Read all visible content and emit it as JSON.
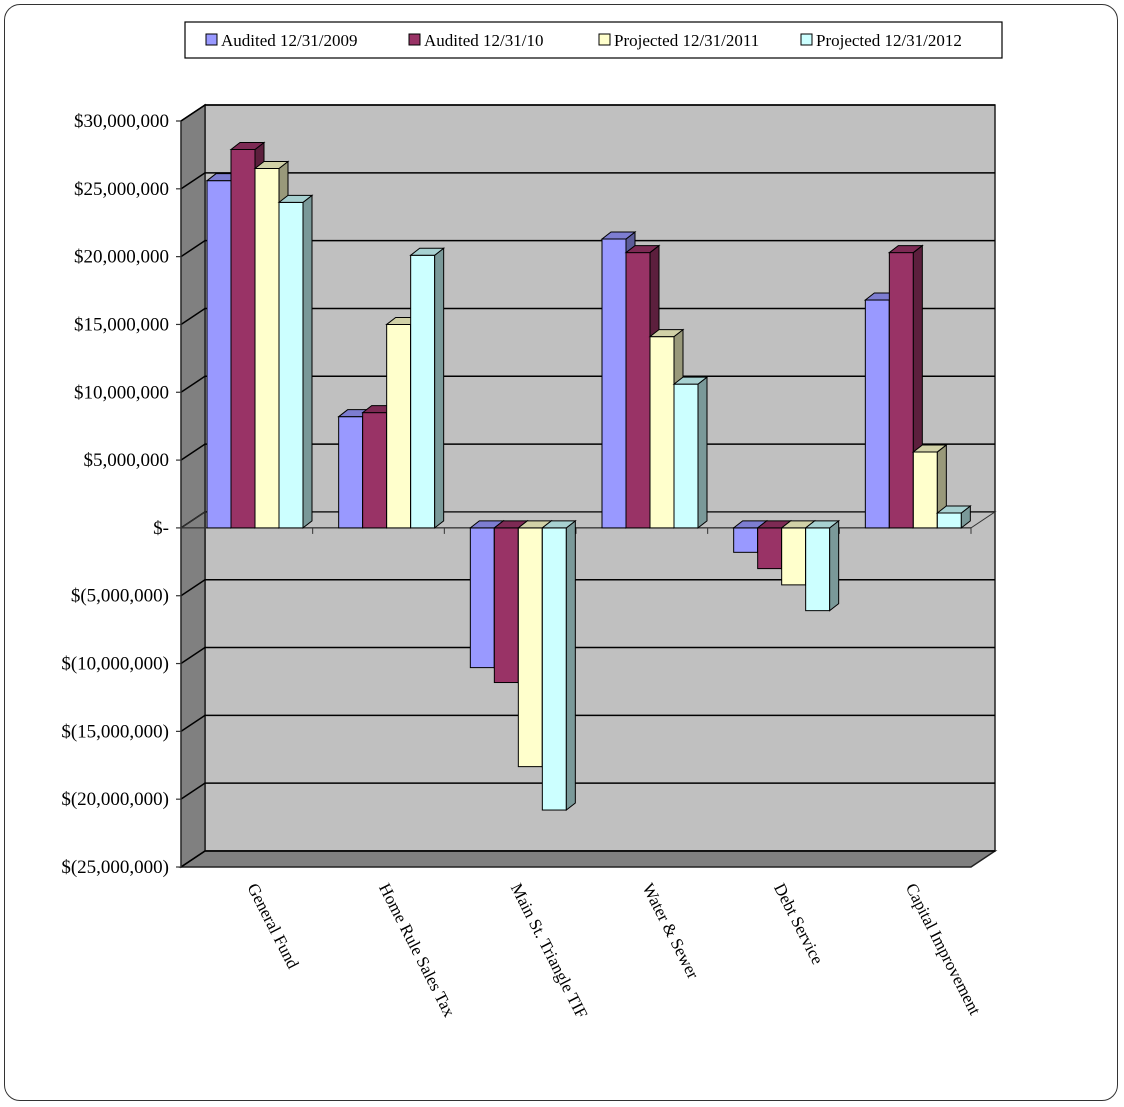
{
  "chart_data": {
    "type": "bar",
    "categories": [
      "General Fund",
      "Home Rule Sales Tax",
      "Main St. Triangle TIF",
      "Water & Sewer",
      "Debt Service",
      "Capital Improvement"
    ],
    "series": [
      {
        "name": "Audited 12/31/2009",
        "color": "#9999FF",
        "values": [
          25600000,
          8200000,
          -10300000,
          21300000,
          -1800000,
          16800000
        ]
      },
      {
        "name": "Audited 12/31/10",
        "color": "#993366",
        "values": [
          27900000,
          8500000,
          -11400000,
          20300000,
          -3000000,
          20300000
        ]
      },
      {
        "name": "Projected 12/31/2011",
        "color": "#FFFFCC",
        "values": [
          26500000,
          15000000,
          -17600000,
          14100000,
          -4200000,
          5600000
        ]
      },
      {
        "name": "Projected 12/31/2012",
        "color": "#CCFFFF",
        "values": [
          24000000,
          20100000,
          -20800000,
          10600000,
          -6100000,
          1100000
        ]
      }
    ],
    "ylim": [
      -25000000,
      30000000
    ],
    "yticks": [
      30000000,
      25000000,
      20000000,
      15000000,
      10000000,
      5000000,
      0,
      -5000000,
      -10000000,
      -15000000,
      -20000000,
      -25000000
    ],
    "ytick_labels": [
      "$30,000,000",
      "$25,000,000",
      "$20,000,000",
      "$15,000,000",
      "$10,000,000",
      "$5,000,000",
      "$-",
      "$(5,000,000)",
      "$(10,000,000)",
      "$(15,000,000)",
      "$(20,000,000)",
      "$(25,000,000)"
    ],
    "grid": true,
    "style": "3d-clustered-column",
    "wall_color": "#C0C0C0",
    "legend_position": "top"
  }
}
